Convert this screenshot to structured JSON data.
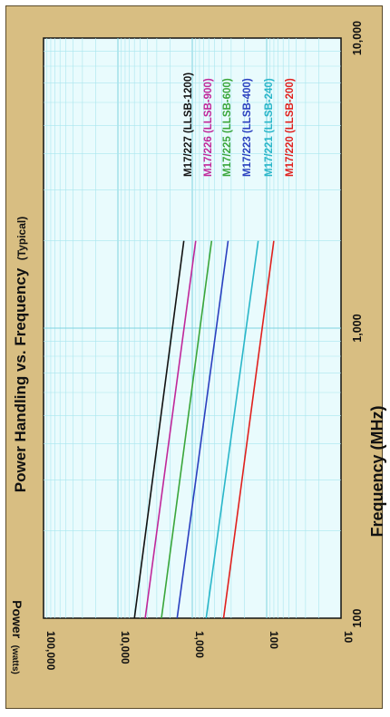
{
  "chart_data": {
    "type": "line",
    "title": "Power Handling vs. Frequency",
    "title_qualifier": "(Typical)",
    "xlabel": "Frequency (MHz)",
    "ylabel": "Power",
    "ylabel_unit": "(watts)",
    "x_scale": "log",
    "y_scale": "log",
    "xlim": [
      100,
      10000
    ],
    "ylim": [
      10,
      100000
    ],
    "x_ticks": [
      "100",
      "1,000",
      "10,000"
    ],
    "y_ticks": [
      "10",
      "100",
      "1,000",
      "10,000",
      "100,000"
    ],
    "grid": true,
    "legend_placement": "right end of lines",
    "series": [
      {
        "name": "M17/227 (LLSB-1200)",
        "color": "#111111",
        "x": [
          100,
          2000
        ],
        "y": [
          6000,
          1300
        ]
      },
      {
        "name": "M17/226 (LLSB-900)",
        "color": "#c0279a",
        "x": [
          100,
          2000
        ],
        "y": [
          4300,
          900
        ]
      },
      {
        "name": "M17/225 (LLSB-600)",
        "color": "#3aa63a",
        "x": [
          100,
          2000
        ],
        "y": [
          2600,
          550
        ]
      },
      {
        "name": "M17/223 (LLSB-400)",
        "color": "#2a3fbf",
        "x": [
          100,
          2000
        ],
        "y": [
          1600,
          330
        ]
      },
      {
        "name": "M17/221 (LLSB-240)",
        "color": "#29b6c9",
        "x": [
          100,
          2000
        ],
        "y": [
          650,
          130
        ]
      },
      {
        "name": "M17/220 (LLSB-200)",
        "color": "#e0201d",
        "x": [
          100,
          2000
        ],
        "y": [
          380,
          80
        ]
      }
    ]
  }
}
